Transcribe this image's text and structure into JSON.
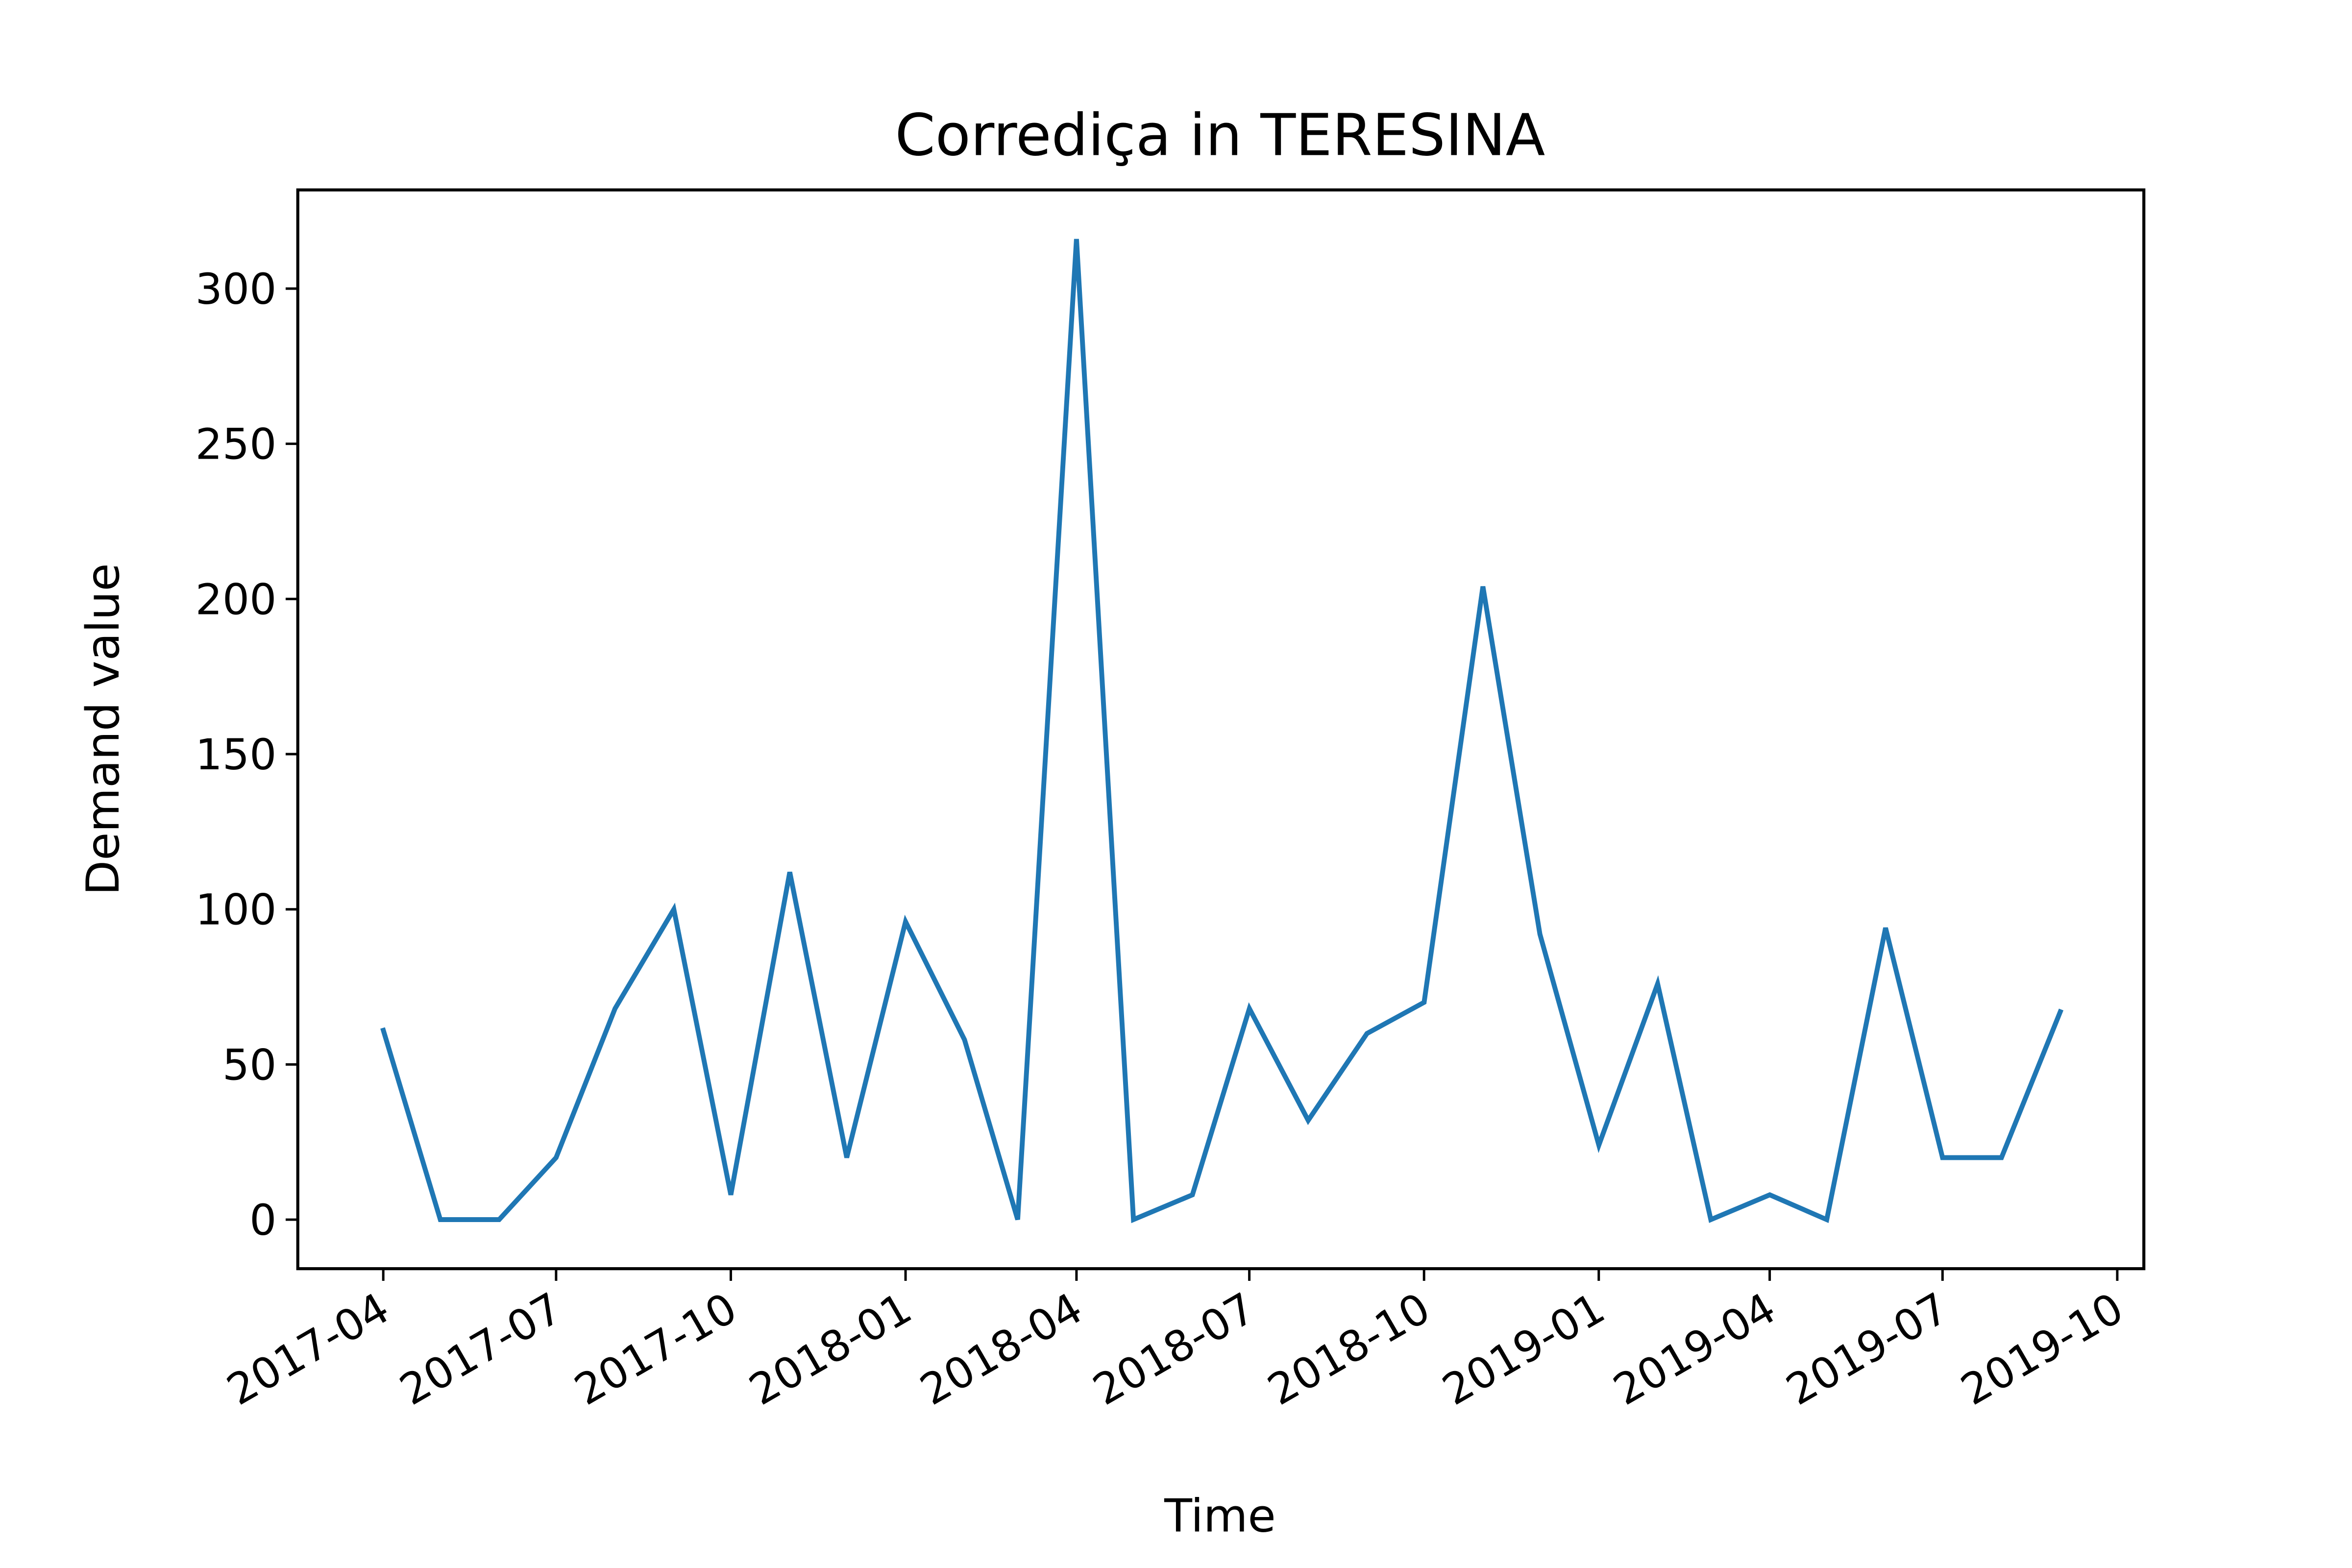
{
  "chart_data": {
    "type": "line",
    "title": "Corrediça in TERESINA",
    "xlabel": "Time",
    "ylabel": "Demand value",
    "x_tick_labels": [
      "2017-04",
      "2017-07",
      "2017-10",
      "2018-01",
      "2018-04",
      "2018-07",
      "2018-10",
      "2019-01",
      "2019-04",
      "2019-07",
      "2019-10"
    ],
    "y_tick_labels": [
      "0",
      "50",
      "100",
      "150",
      "200",
      "250",
      "300"
    ],
    "y_ticks": [
      0,
      50,
      100,
      150,
      200,
      250,
      300
    ],
    "ylim": [
      -15.8,
      331.8
    ],
    "xlim": [
      "2017-02-15",
      "2019-10-15"
    ],
    "grid": false,
    "legend": "none",
    "series": [
      {
        "color": "#1f77b4",
        "x": [
          "2017-04-01",
          "2017-05-01",
          "2017-06-01",
          "2017-07-01",
          "2017-08-01",
          "2017-09-01",
          "2017-10-01",
          "2017-11-01",
          "2017-12-01",
          "2018-01-01",
          "2018-02-01",
          "2018-03-01",
          "2018-04-01",
          "2018-05-01",
          "2018-06-01",
          "2018-07-01",
          "2018-08-01",
          "2018-09-01",
          "2018-10-01",
          "2018-11-01",
          "2018-12-01",
          "2019-01-01",
          "2019-02-01",
          "2019-03-01",
          "2019-04-01",
          "2019-05-01",
          "2019-06-01",
          "2019-07-01",
          "2019-08-01",
          "2019-09-01"
        ],
        "values": [
          61,
          0,
          0,
          20,
          68,
          100,
          8,
          112,
          20,
          96,
          58,
          0,
          316,
          0,
          8,
          68,
          32,
          60,
          70,
          204,
          92,
          24,
          76,
          0,
          8,
          0,
          94,
          20,
          20,
          67
        ]
      }
    ]
  }
}
